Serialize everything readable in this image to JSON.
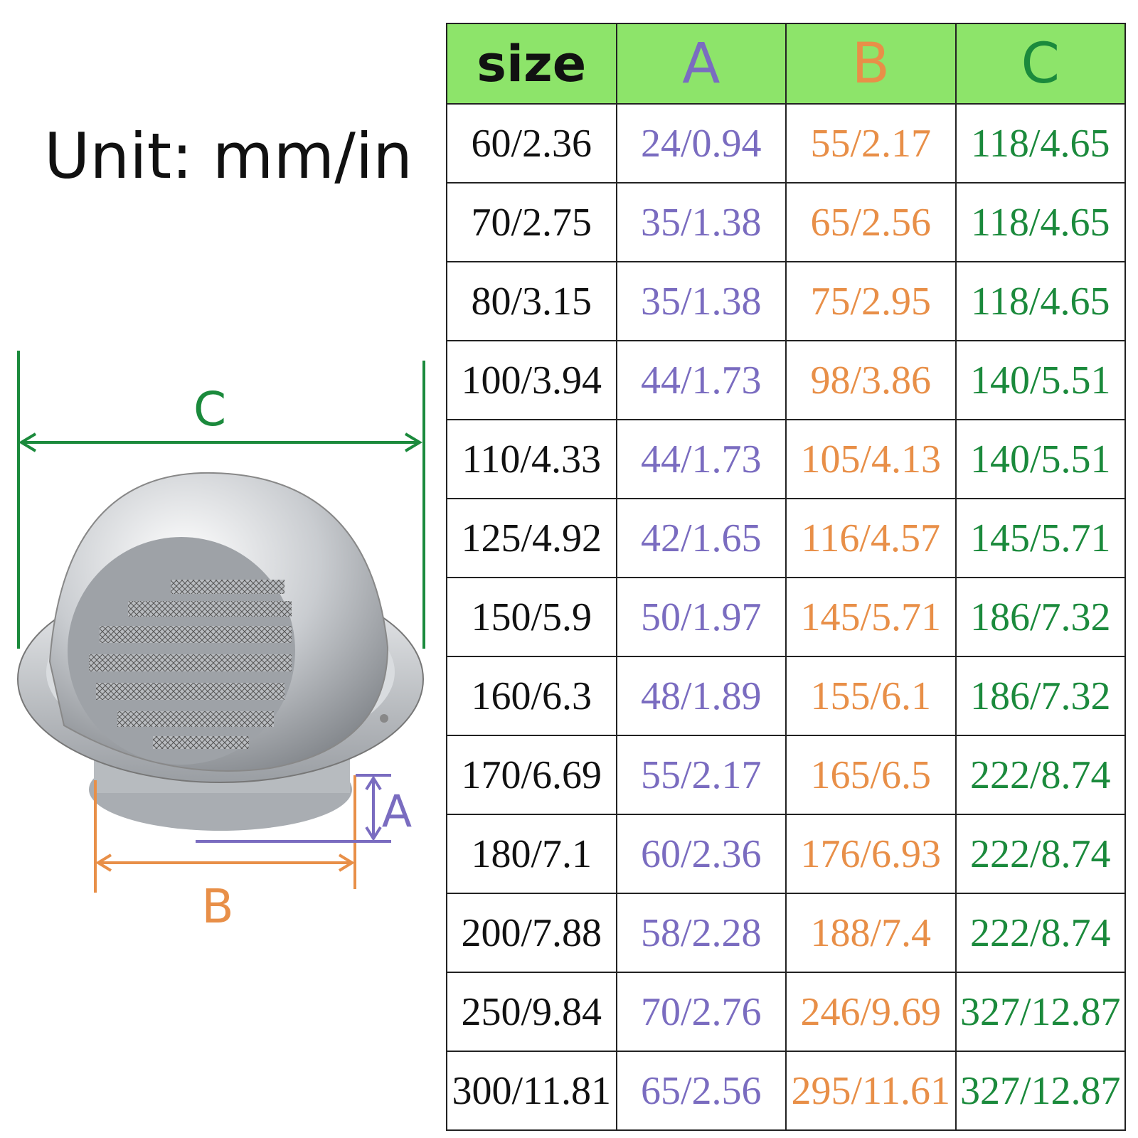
{
  "unit_label": "Unit: mm/in",
  "diagram": {
    "labels": {
      "c": "C",
      "a": "A",
      "b": "B"
    }
  },
  "table": {
    "header": [
      "size",
      "A",
      "B",
      "C"
    ],
    "rows": [
      [
        "60/2.36",
        "24/0.94",
        "55/2.17",
        "118/4.65"
      ],
      [
        "70/2.75",
        "35/1.38",
        "65/2.56",
        "118/4.65"
      ],
      [
        "80/3.15",
        "35/1.38",
        "75/2.95",
        "118/4.65"
      ],
      [
        "100/3.94",
        "44/1.73",
        "98/3.86",
        "140/5.51"
      ],
      [
        "110/4.33",
        "44/1.73",
        "105/4.13",
        "140/5.51"
      ],
      [
        "125/4.92",
        "42/1.65",
        "116/4.57",
        "145/5.71"
      ],
      [
        "150/5.9",
        "50/1.97",
        "145/5.71",
        "186/7.32"
      ],
      [
        "160/6.3",
        "48/1.89",
        "155/6.1",
        "186/7.32"
      ],
      [
        "170/6.69",
        "55/2.17",
        "165/6.5",
        "222/8.74"
      ],
      [
        "180/7.1",
        "60/2.36",
        "176/6.93",
        "222/8.74"
      ],
      [
        "200/7.88",
        "58/2.28",
        "188/7.4",
        "222/8.74"
      ],
      [
        "250/9.84",
        "70/2.76",
        "246/9.69",
        "327/12.87"
      ],
      [
        "300/11.81",
        "65/2.56",
        "295/11.61",
        "327/12.87"
      ]
    ]
  }
}
